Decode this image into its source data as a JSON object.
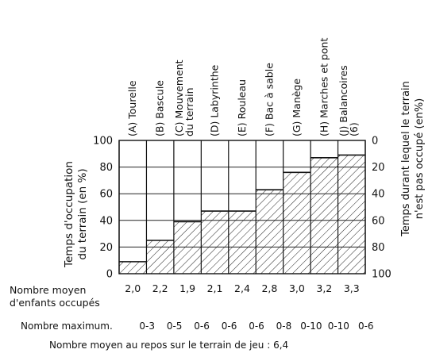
{
  "chart_data": {
    "type": "bar",
    "categories": [
      "(A) Tourelle",
      "(B) Bascule",
      "(C) Mouvement du terrain",
      "(D) Labyrinthe",
      "(E) Rouleau",
      "(F) Bac à sable",
      "(G) Manège",
      "(H) Marches et pont",
      "(J) Balancoires (6)"
    ],
    "category_lines": [
      [
        "(A) Tourelle"
      ],
      [
        "(B) Bascule"
      ],
      [
        "(C)  Mouvement",
        "du terrain"
      ],
      [
        "(D) Labyrinthe"
      ],
      [
        "(E) Rouleau"
      ],
      [
        "(F) Bac à sable"
      ],
      [
        "(G) Manège"
      ],
      [
        "(H) Marches et pont"
      ],
      [
        "(J) Balancoires",
        "(6)"
      ]
    ],
    "values": [
      9,
      25,
      39,
      47,
      47,
      63,
      76,
      87,
      89
    ],
    "ylim": [
      0,
      100
    ],
    "ylabel_left": [
      "Temps  d'occupation",
      "du  terrain (en %)"
    ],
    "ylabel_right": [
      "Temps durant lequel le terrain",
      "n'est pas occupé (en%)"
    ],
    "left_ticks": [
      "0",
      "20",
      "40",
      "60",
      "80",
      "100"
    ],
    "right_ticks": [
      "100",
      "80",
      "60",
      "40",
      "20",
      "0"
    ],
    "grid": true,
    "fill_pattern": "hatched"
  },
  "rows": {
    "moyen_label_1": "Nombre moyen",
    "moyen_label_2": "d'enfants occupés",
    "moyen_values": [
      "2,0",
      "2,2",
      "1,9",
      "2,1",
      "2,4",
      "2,8",
      "3,0",
      "3,2",
      "3,3"
    ],
    "max_label": "Nombre maximum.",
    "max_values": [
      "0-3",
      "0-5",
      "0-6",
      "0-6",
      "0-6",
      "0-8",
      "0-10",
      "0-10",
      "0-6"
    ],
    "repos_text": "Nombre moyen au repos sur le terrain de jeu : 6,4"
  }
}
